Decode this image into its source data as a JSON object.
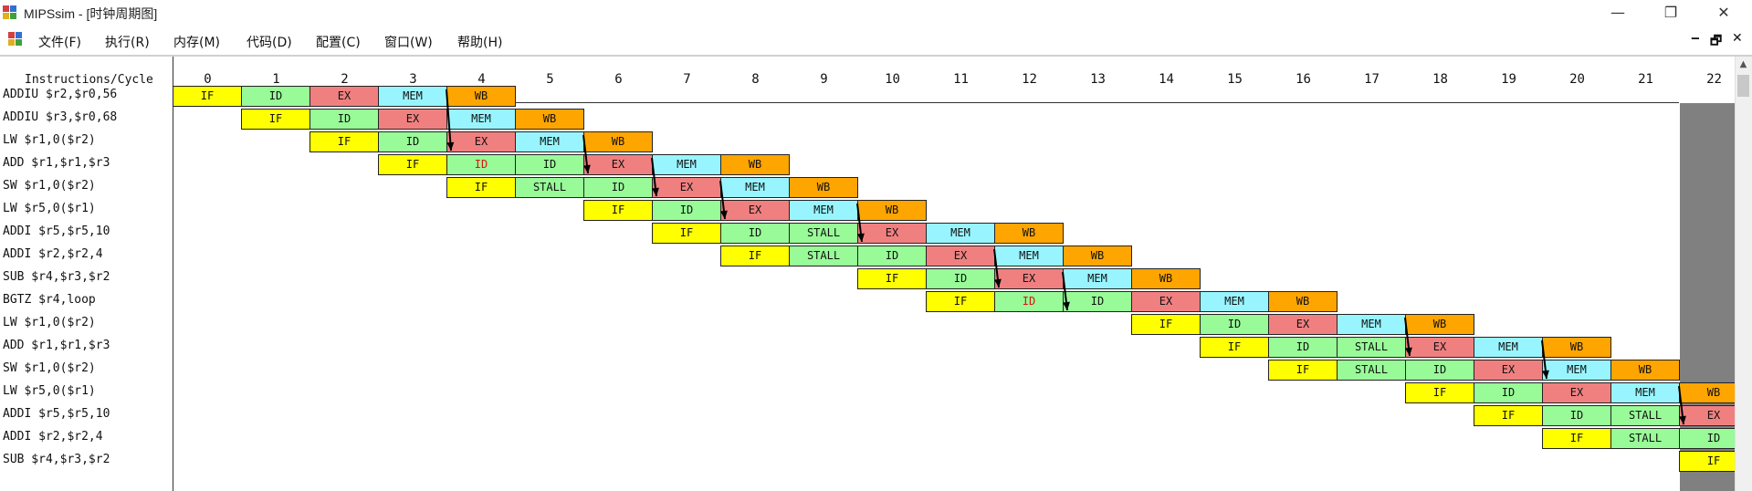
{
  "window": {
    "title": "MIPSsim - [时钟周期图]",
    "minimize_glyph": "—",
    "restore_glyph": "❐",
    "close_glyph": "✕"
  },
  "menu": {
    "items": [
      "文件(F)",
      "执行(R)",
      "内存(M)",
      "代码(D)",
      "配置(C)",
      "窗口(W)",
      "帮助(H)"
    ],
    "mdi_minimize": "‒",
    "mdi_restore": "🗗",
    "mdi_close": "✕"
  },
  "diagram": {
    "header_label": "Instructions/Cycle",
    "cycles": [
      "0",
      "1",
      "2",
      "3",
      "4",
      "5",
      "6",
      "7",
      "8",
      "9",
      "10",
      "11",
      "12",
      "13",
      "14",
      "15",
      "16",
      "17",
      "18",
      "19",
      "20",
      "21",
      "22"
    ],
    "instructions": [
      "ADDIU $r2,$r0,56",
      "ADDIU $r3,$r0,68",
      "LW $r1,0($r2)",
      "ADD $r1,$r1,$r3",
      "SW $r1,0($r2)",
      "LW $r5,0($r1)",
      "ADDI $r5,$r5,10",
      "ADDI $r2,$r2,4",
      "SUB $r4,$r3,$r2",
      "BGTZ $r4,loop",
      "LW $r1,0($r2)",
      "ADD $r1,$r1,$r3",
      "SW $r1,0($r2)",
      "LW $r5,0($r1)",
      "ADDI $r5,$r5,10",
      "ADDI $r2,$r2,4",
      "SUB $r4,$r3,$r2"
    ],
    "pipeline": [
      {
        "start": 0,
        "stages": [
          "IF",
          "ID",
          "EX",
          "MEM",
          "WB"
        ]
      },
      {
        "start": 1,
        "stages": [
          "IF",
          "ID",
          "EX",
          "MEM",
          "WB"
        ]
      },
      {
        "start": 2,
        "stages": [
          "IF",
          "ID",
          "EX",
          "MEM",
          "WB"
        ]
      },
      {
        "start": 3,
        "stages": [
          "IF",
          "ID",
          "ID",
          "EX",
          "MEM",
          "WB"
        ],
        "red": [
          1
        ]
      },
      {
        "start": 4,
        "stages": [
          "IF",
          "STALL",
          "ID",
          "EX",
          "MEM",
          "WB"
        ]
      },
      {
        "start": 6,
        "stages": [
          "IF",
          "ID",
          "EX",
          "MEM",
          "WB"
        ]
      },
      {
        "start": 7,
        "stages": [
          "IF",
          "ID",
          "STALL",
          "EX",
          "MEM",
          "WB"
        ]
      },
      {
        "start": 8,
        "stages": [
          "IF",
          "STALL",
          "ID",
          "EX",
          "MEM",
          "WB"
        ]
      },
      {
        "start": 10,
        "stages": [
          "IF",
          "ID",
          "EX",
          "MEM",
          "WB"
        ]
      },
      {
        "start": 11,
        "stages": [
          "IF",
          "ID",
          "ID",
          "EX",
          "MEM",
          "WB"
        ],
        "red": [
          1
        ]
      },
      {
        "start": 14,
        "stages": [
          "IF",
          "ID",
          "EX",
          "MEM",
          "WB"
        ]
      },
      {
        "start": 15,
        "stages": [
          "IF",
          "ID",
          "STALL",
          "EX",
          "MEM",
          "WB"
        ]
      },
      {
        "start": 16,
        "stages": [
          "IF",
          "STALL",
          "ID",
          "EX",
          "MEM",
          "WB"
        ]
      },
      {
        "start": 18,
        "stages": [
          "IF",
          "ID",
          "EX",
          "MEM",
          "WB"
        ]
      },
      {
        "start": 19,
        "stages": [
          "IF",
          "ID",
          "STALL",
          "EX"
        ]
      },
      {
        "start": 20,
        "stages": [
          "IF",
          "STALL",
          "ID"
        ]
      },
      {
        "start": 22,
        "stages": [
          "IF"
        ]
      }
    ],
    "forwarding_arrows": [
      {
        "from_row": 0,
        "from_cycle": 4,
        "to_row": 2,
        "to_cycle": 4
      },
      {
        "from_row": 2,
        "from_cycle": 6,
        "to_row": 3,
        "to_cycle": 6
      },
      {
        "from_row": 3,
        "from_cycle": 7,
        "to_row": 4,
        "to_cycle": 7
      },
      {
        "from_row": 4,
        "from_cycle": 8,
        "to_row": 5,
        "to_cycle": 8
      },
      {
        "from_row": 5,
        "from_cycle": 10,
        "to_row": 6,
        "to_cycle": 10
      },
      {
        "from_row": 7,
        "from_cycle": 12,
        "to_row": 8,
        "to_cycle": 12
      },
      {
        "from_row": 8,
        "from_cycle": 13,
        "to_row": 9,
        "to_cycle": 13
      },
      {
        "from_row": 10,
        "from_cycle": 18,
        "to_row": 11,
        "to_cycle": 18
      },
      {
        "from_row": 11,
        "from_cycle": 20,
        "to_row": 12,
        "to_cycle": 20
      },
      {
        "from_row": 13,
        "from_cycle": 22,
        "to_row": 14,
        "to_cycle": 22
      }
    ],
    "stage_colors": {
      "IF": "#ffff00",
      "ID": "#98fb98",
      "EX": "#f08080",
      "MEM": "#98f5ff",
      "WB": "#ffa500",
      "STALL": "#98fb98"
    }
  }
}
